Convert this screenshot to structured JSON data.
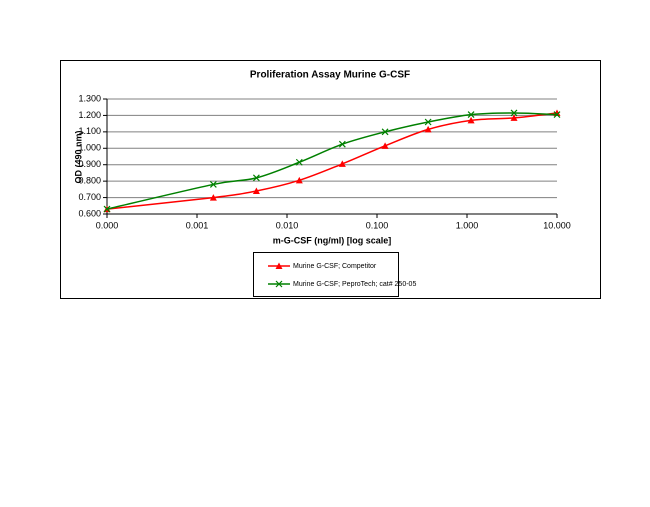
{
  "chart_data": {
    "type": "line",
    "title": "Proliferation Assay Murine G-CSF",
    "x_label": "m-G-CSF (ng/ml) [log scale]",
    "y_label": "OD (490 nm)",
    "x_log": true,
    "grid": true,
    "xlim": [
      0.0001,
      10
    ],
    "xticks": [
      {
        "value": 0.0001,
        "label": "0.000"
      },
      0.001,
      {
        "value": 0.01,
        "label": "0.010"
      },
      {
        "value": 0.1,
        "label": "0.100"
      },
      {
        "value": 1,
        "label": "1.000"
      },
      {
        "value": 10,
        "label": "10.000"
      }
    ],
    "ylim": [
      0.6,
      1.3
    ],
    "yticks": [
      {
        "value": 0.6,
        "label": "0.600"
      },
      {
        "value": 0.7,
        "label": "0.700"
      },
      {
        "value": 0.8,
        "label": "0.800"
      },
      {
        "value": 0.9,
        "label": "0.900"
      },
      {
        "value": 1.0,
        "label": "1.000"
      },
      {
        "value": 1.1,
        "label": "1.100"
      },
      {
        "value": 1.2,
        "label": "1.200"
      },
      {
        "value": 1.3,
        "label": "1.300"
      }
    ],
    "x": [
      0.0001,
      0.00152,
      0.00457,
      0.0137,
      0.0412,
      0.123,
      0.37,
      1.11,
      3.33,
      10
    ],
    "series": [
      {
        "name": "Murine G-CSF; Competitor",
        "color": "#ff0000",
        "marker": "triangle",
        "values": [
          0.63,
          0.7,
          0.74,
          0.805,
          0.905,
          1.015,
          1.115,
          1.17,
          1.185,
          1.215
        ]
      },
      {
        "name": "Murine G-CSF; PeproTech; cat# 250-05",
        "color": "#008000",
        "marker": "x",
        "values": [
          0.63,
          0.78,
          0.82,
          0.915,
          1.025,
          1.1,
          1.16,
          1.205,
          1.215,
          1.205
        ]
      }
    ]
  }
}
